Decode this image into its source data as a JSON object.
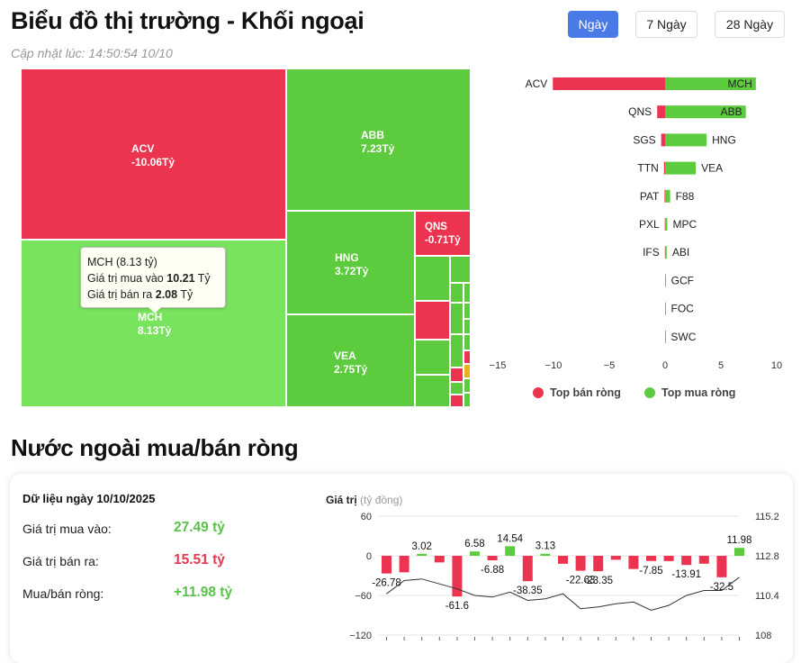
{
  "header": {
    "title": "Biểu đồ thị trường - Khối ngoại",
    "updated": "Cập nhật lúc: 14:50:54 10/10",
    "tabs": [
      {
        "label": "Ngày",
        "active": true
      },
      {
        "label": "7 Ngày",
        "active": false
      },
      {
        "label": "28 Ngày",
        "active": false
      }
    ]
  },
  "treemap": {
    "cells": [
      {
        "ticker": "ACV",
        "value": "-10.06Tỷ"
      },
      {
        "ticker": "MCH",
        "value": "8.13Tỷ"
      },
      {
        "ticker": "ABB",
        "value": "7.23Tỷ"
      },
      {
        "ticker": "HNG",
        "value": "3.72Tỷ"
      },
      {
        "ticker": "VEA",
        "value": "2.75Tỷ"
      },
      {
        "ticker": "QNS",
        "value": "-0.71Tỷ"
      }
    ],
    "tooltip": {
      "title": "MCH (8.13 tỷ)",
      "buy_label": "Giá trị mua vào",
      "buy_value": "10.21",
      "buy_unit": "Tỷ",
      "sell_label": "Giá trị bán ra",
      "sell_value": "2.08",
      "sell_unit": "Tỷ"
    }
  },
  "colors": {
    "buy": "#5ccb3e",
    "sell": "#ec3450",
    "accent": "#4a7ae6",
    "neutral": "#e8b31a"
  },
  "chart_data": [
    {
      "type": "bar",
      "orientation": "horizontal-diverging",
      "x_ticks": [
        "−15",
        "−10",
        "−5",
        "0",
        "5",
        "10"
      ],
      "xlim": [
        -15,
        10
      ],
      "legend": [
        {
          "label": "Top bán ròng",
          "color": "#ec3450"
        },
        {
          "label": "Top mua ròng",
          "color": "#5ccb3e"
        }
      ],
      "rows": [
        {
          "sell_ticker": "ACV",
          "sell": -10.06,
          "buy_ticker": "MCH",
          "buy": 8.13
        },
        {
          "sell_ticker": "QNS",
          "sell": -0.71,
          "buy_ticker": "ABB",
          "buy": 7.23
        },
        {
          "sell_ticker": "SGS",
          "sell": -0.35,
          "buy_ticker": "HNG",
          "buy": 3.72
        },
        {
          "sell_ticker": "TTN",
          "sell": -0.1,
          "buy_ticker": "VEA",
          "buy": 2.75
        },
        {
          "sell_ticker": "PAT",
          "sell": -0.05,
          "buy_ticker": "F88",
          "buy": 0.45
        },
        {
          "sell_ticker": "PXL",
          "sell": -0.03,
          "buy_ticker": "MPC",
          "buy": 0.2
        },
        {
          "sell_ticker": "IFS",
          "sell": -0.02,
          "buy_ticker": "ABI",
          "buy": 0.15
        },
        {
          "sell_ticker": "",
          "sell": 0,
          "buy_ticker": "GCF",
          "buy": 0.05
        },
        {
          "sell_ticker": "",
          "sell": 0,
          "buy_ticker": "FOC",
          "buy": 0.04
        },
        {
          "sell_ticker": "",
          "sell": 0,
          "buy_ticker": "SWC",
          "buy": 0.03
        }
      ]
    },
    {
      "type": "bar",
      "with_line": true,
      "ylabel": "Giá trị",
      "ylabel_unit": "(tỷ đồng)",
      "ylim": [
        -120,
        60
      ],
      "y_ticks": [
        "60",
        "0",
        "−60",
        "−120"
      ],
      "y2_ticks": [
        "115.2",
        "112.8",
        "110.4",
        "108"
      ],
      "y2lim": [
        108,
        115.2
      ],
      "values": [
        -26.78,
        -25,
        3.02,
        -10,
        -61.6,
        6.58,
        -6.88,
        14.54,
        -38.35,
        3.13,
        -12,
        -22.63,
        -23.35,
        -6,
        -20,
        -7.85,
        -8,
        -13.91,
        -12,
        -32.5,
        11.98
      ],
      "labels": [
        "-26.78",
        "",
        "3.02",
        "",
        "-61.6",
        "6.58",
        "-6.88",
        "14.54",
        "-38.35",
        "3.13",
        "",
        "-22.63",
        "-23.35",
        "",
        "",
        "-7.85",
        "",
        "-13.91",
        "",
        "-32.5",
        "11.98"
      ],
      "line": [
        110.5,
        111.3,
        111.4,
        111.1,
        110.8,
        110.4,
        110.3,
        110.6,
        110.1,
        110.2,
        110.5,
        109.6,
        109.7,
        109.9,
        110.0,
        109.5,
        109.8,
        110.4,
        110.7,
        110.7,
        111.5
      ]
    }
  ],
  "summary": {
    "date_label": "Dữ liệu ngày 10/10/2025",
    "buy_label": "Giá trị mua vào:",
    "buy_value": "27.49 tỷ",
    "sell_label": "Giá trị bán ra:",
    "sell_value": "15.51 tỷ",
    "net_label": "Mua/bán ròng:",
    "net_value": "+11.98 tỷ"
  },
  "section_title": "Nước ngoài mua/bán ròng"
}
